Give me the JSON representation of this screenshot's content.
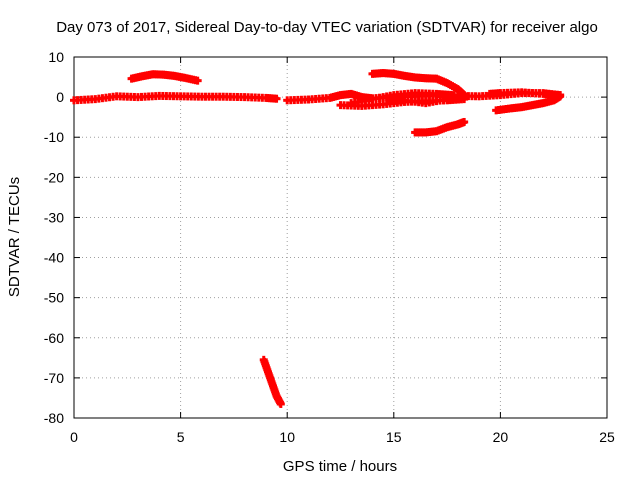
{
  "chart_data": {
    "type": "scatter",
    "title": "Day 073 of 2017, Sidereal Day-to-day VTEC variation (SDTVAR) for receiver algo",
    "xlabel": "GPS time / hours",
    "ylabel": "SDTVAR / TECUs",
    "xlim": [
      0,
      25
    ],
    "ylim": [
      -80,
      10
    ],
    "xticks": [
      0,
      5,
      10,
      15,
      20,
      25
    ],
    "yticks": [
      10,
      0,
      -10,
      -20,
      -30,
      -40,
      -50,
      -60,
      -70,
      -80
    ],
    "grid": true,
    "legend": "none",
    "marker": "plus",
    "color": "#ff0000",
    "series": [
      {
        "x": [
          0.0,
          1.0,
          2.0,
          3.0,
          4.0,
          5.0,
          6.0,
          7.0,
          8.0,
          9.0,
          9.5
        ],
        "y": [
          -0.8,
          -0.5,
          0.2,
          0.0,
          0.3,
          0.2,
          0.1,
          0.1,
          0.0,
          -0.2,
          -0.4
        ]
      },
      {
        "x": [
          2.7,
          3.2,
          3.7,
          4.2,
          4.7,
          5.2,
          5.8
        ],
        "y": [
          4.6,
          5.2,
          5.7,
          5.6,
          5.3,
          4.8,
          4.1
        ]
      },
      {
        "x": [
          10.0,
          11.0,
          12.0,
          12.5,
          13.0,
          13.5,
          14.0,
          15.0,
          16.0,
          17.0,
          18.0,
          19.0,
          20.0,
          21.0,
          22.0,
          22.8
        ],
        "y": [
          -0.8,
          -0.6,
          -0.2,
          0.5,
          0.8,
          0.0,
          -0.3,
          0.0,
          0.2,
          0.5,
          0.3,
          0.2,
          0.5,
          1.0,
          1.0,
          0.5
        ]
      },
      {
        "x": [
          12.5,
          13.5,
          14.5,
          15.5,
          16.5,
          17.5,
          18.3
        ],
        "y": [
          -2.0,
          -2.2,
          -1.8,
          -1.2,
          -1.0,
          -0.8,
          -0.5
        ]
      },
      {
        "x": [
          13.0,
          14.0,
          15.0,
          16.0,
          17.0,
          17.8
        ],
        "y": [
          -1.5,
          -0.5,
          0.5,
          1.0,
          0.8,
          0.5
        ]
      },
      {
        "x": [
          14.8,
          15.5,
          16.5,
          17.5,
          18.3
        ],
        "y": [
          -1.0,
          -0.8,
          -1.5,
          -0.5,
          0.0
        ]
      },
      {
        "x": [
          14.0,
          14.5,
          15.0,
          15.5,
          16.0,
          16.5,
          17.0,
          17.5,
          18.0,
          18.3
        ],
        "y": [
          5.8,
          6.0,
          5.8,
          5.3,
          4.9,
          4.7,
          4.6,
          3.5,
          2.0,
          0.5
        ]
      },
      {
        "x": [
          16.0,
          16.5,
          17.0,
          17.5,
          18.0,
          18.3
        ],
        "y": [
          -8.8,
          -8.8,
          -8.5,
          -7.5,
          -6.8,
          -6.2
        ]
      },
      {
        "x": [
          19.8,
          20.5,
          21.0,
          21.5,
          22.0,
          22.5,
          22.8
        ],
        "y": [
          -3.3,
          -2.8,
          -2.5,
          -2.0,
          -1.5,
          -0.8,
          0.2
        ]
      },
      {
        "x": [
          19.5,
          20.0,
          21.0,
          22.0,
          22.8
        ],
        "y": [
          0.8,
          1.0,
          1.2,
          0.8,
          0.5
        ]
      },
      {
        "x": [
          8.9,
          9.1,
          9.3,
          9.5,
          9.7
        ],
        "y": [
          -65.5,
          -68.5,
          -71.5,
          -74.5,
          -76.5
        ]
      }
    ]
  }
}
